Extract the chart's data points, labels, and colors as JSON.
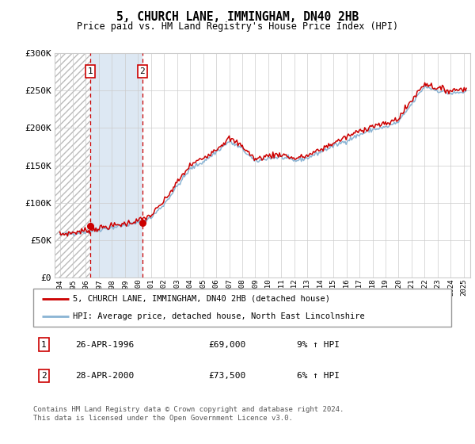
{
  "title": "5, CHURCH LANE, IMMINGHAM, DN40 2HB",
  "subtitle": "Price paid vs. HM Land Registry's House Price Index (HPI)",
  "ylabel_vals": [
    "£0",
    "£50K",
    "£100K",
    "£150K",
    "£200K",
    "£250K",
    "£300K"
  ],
  "yticks": [
    0,
    50000,
    100000,
    150000,
    200000,
    250000,
    300000
  ],
  "ylim": [
    0,
    300000
  ],
  "xmin_year": 1993.6,
  "xmax_year": 2025.5,
  "hatch_end": 1996.33,
  "shade1_start": 1996.33,
  "shade1_end": 2000.33,
  "purchase1_x": 1996.33,
  "purchase1_y": 69000,
  "purchase2_x": 2000.33,
  "purchase2_y": 73500,
  "purchase_color": "#cc0000",
  "hpi_color": "#8ab4d4",
  "price_color": "#cc0000",
  "legend_entries": [
    "5, CHURCH LANE, IMMINGHAM, DN40 2HB (detached house)",
    "HPI: Average price, detached house, North East Lincolnshire"
  ],
  "table_rows": [
    {
      "num": "1",
      "date": "26-APR-1996",
      "price": "£69,000",
      "hpi": "9% ↑ HPI"
    },
    {
      "num": "2",
      "date": "28-APR-2000",
      "price": "£73,500",
      "hpi": "6% ↑ HPI"
    }
  ],
  "footer": "Contains HM Land Registry data © Crown copyright and database right 2024.\nThis data is licensed under the Open Government Licence v3.0.",
  "xtick_years": [
    1994,
    1995,
    1996,
    1997,
    1998,
    1999,
    2000,
    2001,
    2002,
    2003,
    2004,
    2005,
    2006,
    2007,
    2008,
    2009,
    2010,
    2011,
    2012,
    2013,
    2014,
    2015,
    2016,
    2017,
    2018,
    2019,
    2020,
    2021,
    2022,
    2023,
    2024,
    2025
  ],
  "hpi_key_points": [
    [
      1994.0,
      57000
    ],
    [
      1995.0,
      59000
    ],
    [
      1996.0,
      61000
    ],
    [
      1997.0,
      64000
    ],
    [
      1998.0,
      67000
    ],
    [
      1999.0,
      70000
    ],
    [
      2000.0,
      73000
    ],
    [
      2001.0,
      80000
    ],
    [
      2002.0,
      98000
    ],
    [
      2003.0,
      122000
    ],
    [
      2004.0,
      145000
    ],
    [
      2005.0,
      155000
    ],
    [
      2006.0,
      168000
    ],
    [
      2007.0,
      182000
    ],
    [
      2008.0,
      172000
    ],
    [
      2009.0,
      155000
    ],
    [
      2010.0,
      160000
    ],
    [
      2011.0,
      161000
    ],
    [
      2012.0,
      156000
    ],
    [
      2013.0,
      160000
    ],
    [
      2014.0,
      168000
    ],
    [
      2015.0,
      176000
    ],
    [
      2016.0,
      183000
    ],
    [
      2017.0,
      191000
    ],
    [
      2018.0,
      198000
    ],
    [
      2019.0,
      201000
    ],
    [
      2020.0,
      208000
    ],
    [
      2021.0,
      232000
    ],
    [
      2022.0,
      256000
    ],
    [
      2023.0,
      250000
    ],
    [
      2024.0,
      246000
    ],
    [
      2025.0,
      248000
    ]
  ],
  "price_key_points": [
    [
      1994.0,
      57500
    ],
    [
      1995.0,
      60000
    ],
    [
      1996.0,
      63000
    ],
    [
      1997.0,
      66000
    ],
    [
      1998.0,
      69000
    ],
    [
      1999.0,
      72000
    ],
    [
      2000.0,
      76000
    ],
    [
      2001.0,
      83000
    ],
    [
      2002.0,
      102000
    ],
    [
      2003.0,
      127000
    ],
    [
      2004.0,
      150000
    ],
    [
      2005.0,
      160000
    ],
    [
      2006.0,
      172000
    ],
    [
      2007.0,
      186000
    ],
    [
      2008.0,
      176000
    ],
    [
      2009.0,
      158000
    ],
    [
      2010.0,
      163000
    ],
    [
      2011.0,
      165000
    ],
    [
      2012.0,
      159000
    ],
    [
      2013.0,
      163000
    ],
    [
      2014.0,
      171000
    ],
    [
      2015.0,
      180000
    ],
    [
      2016.0,
      188000
    ],
    [
      2017.0,
      196000
    ],
    [
      2018.0,
      203000
    ],
    [
      2019.0,
      205000
    ],
    [
      2020.0,
      213000
    ],
    [
      2021.0,
      237000
    ],
    [
      2022.0,
      260000
    ],
    [
      2023.0,
      253000
    ],
    [
      2024.0,
      250000
    ],
    [
      2025.0,
      253000
    ]
  ],
  "hpi_noise_seed": 42,
  "price_noise_seed": 7,
  "hpi_noise_std": 1500,
  "price_noise_std": 2000
}
